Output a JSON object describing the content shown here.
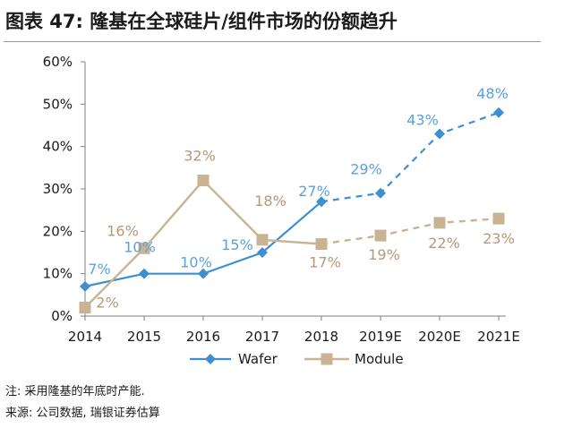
{
  "title": "图表 47: 隆基在全球硅片/组件市场的份额趋升",
  "notes": {
    "note": "注: 采用隆基的年底时产能.",
    "source": "来源: 公司数据, 瑞银证券估算"
  },
  "colors": {
    "wafer": "#3d8fd1",
    "module": "#c9b393",
    "wafer_label": "#5aa2dc",
    "module_label": "#b89877",
    "axis": "#7f7f7f"
  },
  "chart_data": {
    "type": "line",
    "categories": [
      "2014",
      "2015",
      "2016",
      "2017",
      "2018",
      "2019E",
      "2020E",
      "2021E"
    ],
    "series": [
      {
        "name": "Wafer",
        "values": [
          7,
          10,
          10,
          15,
          27,
          29,
          43,
          48
        ],
        "labels": [
          "7%",
          "10%",
          "10%",
          "15%",
          "27%",
          "29%",
          "43%",
          "48%"
        ],
        "forecast_from_index": 4,
        "marker": "diamond"
      },
      {
        "name": "Module",
        "values": [
          2,
          16,
          32,
          18,
          17,
          19,
          22,
          23
        ],
        "labels": [
          "2%",
          "16%",
          "32%",
          "18%",
          "17%",
          "19%",
          "22%",
          "23%"
        ],
        "forecast_from_index": 4,
        "marker": "square"
      }
    ],
    "y_ticks": [
      "0%",
      "10%",
      "20%",
      "30%",
      "40%",
      "50%",
      "60%"
    ],
    "ylim": [
      0,
      60
    ],
    "grid": false,
    "legend_position": "bottom"
  }
}
